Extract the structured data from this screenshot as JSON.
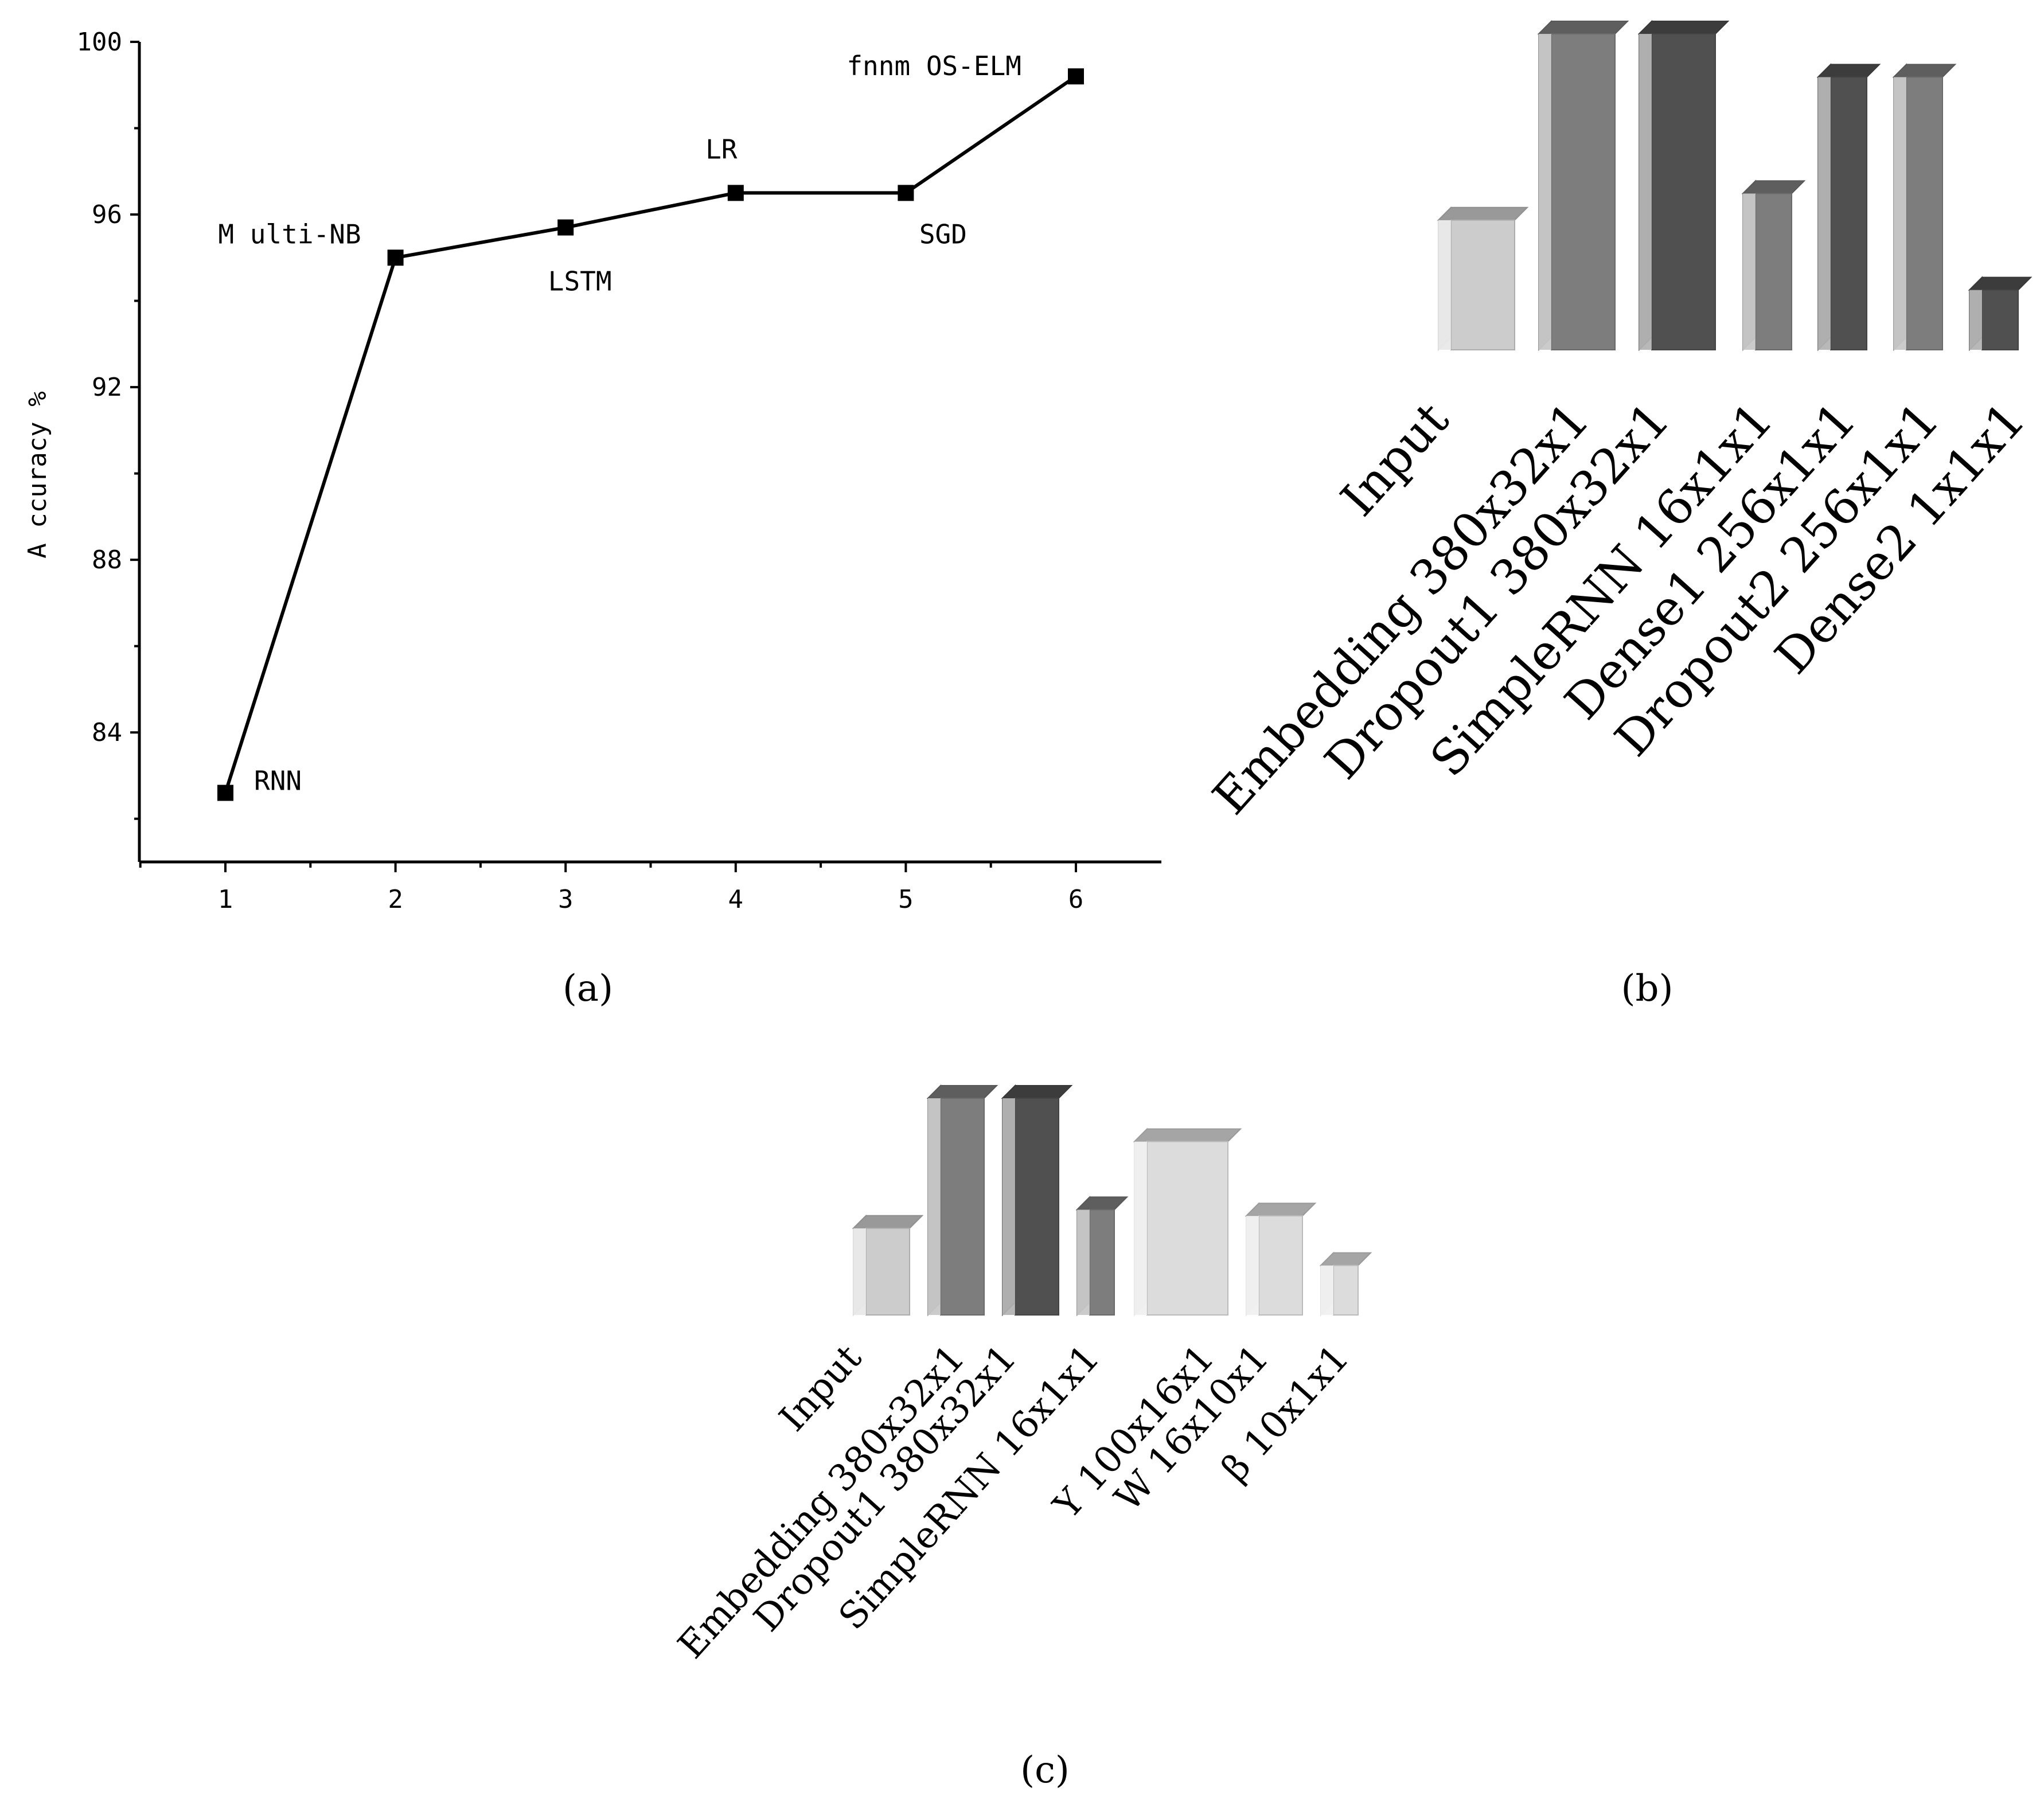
{
  "panels": {
    "a": {
      "caption": "(a)"
    },
    "b": {
      "caption": "(b)"
    },
    "c": {
      "caption": "(c)"
    }
  },
  "chart_data": [
    {
      "id": "a",
      "type": "line",
      "title": "",
      "xlabel": "",
      "ylabel": "A ccuracy %",
      "x": [
        1,
        2,
        3,
        4,
        5,
        6
      ],
      "y": [
        82.6,
        95.0,
        95.7,
        96.5,
        96.5,
        99.2
      ],
      "point_labels": [
        "RNN",
        "M ulti-NB",
        "LSTM",
        "LR",
        "SGD",
        "fnnm OS-ELM"
      ],
      "xticks": [
        "1",
        "2",
        "3",
        "4",
        "5",
        "6"
      ],
      "yticks": [
        "84",
        "88",
        "92",
        "96",
        "100"
      ],
      "xlim": [
        0.5,
        6.5
      ],
      "ylim": [
        81,
        100
      ],
      "grid": false,
      "marker": "square",
      "line_color": "#000000"
    },
    {
      "id": "b",
      "type": "bar",
      "style": "3d",
      "title": "",
      "categories": [
        "Input",
        "Embedding 380x32x1",
        "Dropout1 380x32x1",
        "SimpleRNN 16x1x1",
        "Dense1 256x1x1",
        "Dropout2 256x1x1",
        "Dense2 1x1x1"
      ],
      "values": [
        3.9,
        9.5,
        9.5,
        4.7,
        8.2,
        8.2,
        1.8
      ],
      "colors": [
        "#cccccc",
        "#7d7d7d",
        "#505050",
        "#7d7d7d",
        "#505050",
        "#7d7d7d",
        "#505050"
      ]
    },
    {
      "id": "c",
      "type": "bar",
      "style": "3d",
      "title": "",
      "categories": [
        "Input",
        "Embedding 380x32x1",
        "Dropout1 380x32x1",
        "SimpleRNN 16x1x1",
        "Y 100x16x1",
        "W 16x10x1",
        "β 10x1x1"
      ],
      "values": [
        2.8,
        7.0,
        7.0,
        3.4,
        5.6,
        3.2,
        1.6
      ],
      "colors": [
        "#cccccc",
        "#7d7d7d",
        "#505050",
        "#7d7d7d",
        "#dcdcdc",
        "#dcdcdc",
        "#dcdcdc"
      ]
    }
  ]
}
